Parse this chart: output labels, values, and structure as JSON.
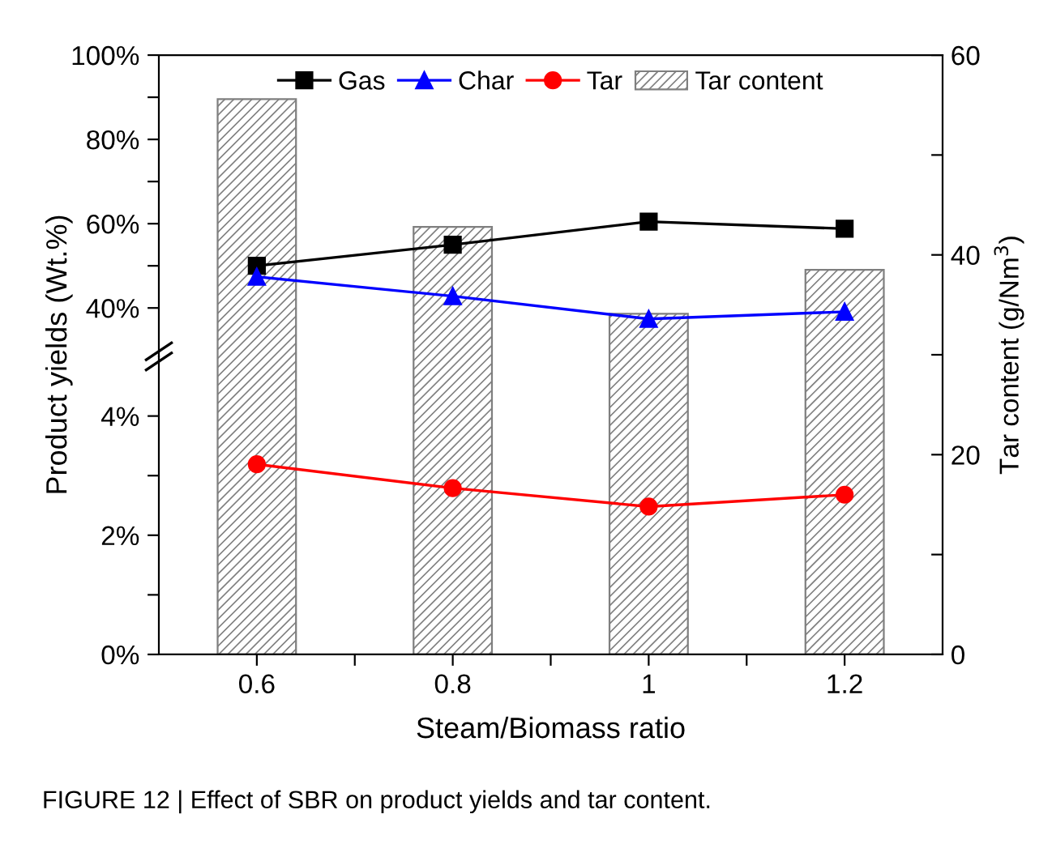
{
  "chart_data": [
    {
      "type": "line",
      "x": [
        0.6,
        0.8,
        1,
        1.2
      ],
      "xlim": [
        0.5,
        1.3
      ],
      "ylim": [
        28.5,
        100
      ],
      "yticks": [
        {
          "value": 40,
          "label": "40%"
        },
        {
          "value": 50,
          "label": null
        },
        {
          "value": 60,
          "label": "60%"
        },
        {
          "value": 70,
          "label": null
        },
        {
          "value": 80,
          "label": "80%"
        },
        {
          "value": 90,
          "label": null
        },
        {
          "value": 100,
          "label": "100%"
        }
      ],
      "tick_labels": "y",
      "legend": "top",
      "series": [
        {
          "name": "Gas",
          "color": "#000000",
          "marker": "square",
          "values": [
            50,
            55,
            60.5,
            58.8
          ]
        },
        {
          "name": "Char",
          "color": "#0000ff",
          "marker": "triangle",
          "values": [
            47.4,
            42.8,
            37.4,
            39.1
          ]
        }
      ]
    },
    {
      "type": "line",
      "x": [
        0.6,
        0.8,
        1,
        1.2
      ],
      "xlim": [
        0.5,
        1.3
      ],
      "ylim": [
        0,
        5
      ],
      "xticks": [
        {
          "value": 0.6,
          "label": "0.6"
        },
        {
          "value": 0.7,
          "label": null
        },
        {
          "value": 0.8,
          "label": "0.8"
        },
        {
          "value": 0.9,
          "label": null
        },
        1,
        {
          "value": 1.1,
          "label": null
        },
        {
          "value": 1.2,
          "label": "1.2"
        }
      ],
      "yticks": [
        {
          "value": 0,
          "label": "0%"
        },
        {
          "value": 1,
          "label": null
        },
        {
          "value": 2,
          "label": "2%"
        },
        {
          "value": 3,
          "label": null
        },
        {
          "value": 4,
          "label": "4%"
        }
      ],
      "y2lim": [
        0,
        60
      ],
      "y2ticks": [
        0,
        {
          "value": 10,
          "label": null
        },
        20,
        {
          "value": 30,
          "label": null
        },
        40,
        {
          "value": 50,
          "label": null
        },
        60
      ],
      "xlabel": "Steam/Biomass ratio",
      "ylabel": "Product yields (Wt.%)",
      "y2label": "Tar content (g/Nm$^{3}$)",
      "legend": "top",
      "annotations": [
        "FIGURE 12 | Effect of SBR on product yields and tar content."
      ],
      "series": [
        {
          "name": "Tar",
          "color": "#ff0000",
          "marker": "circle",
          "values": [
            3.19,
            2.79,
            2.48,
            2.68
          ]
        },
        {
          "name": "Tar content",
          "type": "bar",
          "axis": "y2",
          "color": "#7f7f7f",
          "values": [
            55.6,
            42.8,
            34.1,
            38.5
          ]
        }
      ]
    }
  ]
}
